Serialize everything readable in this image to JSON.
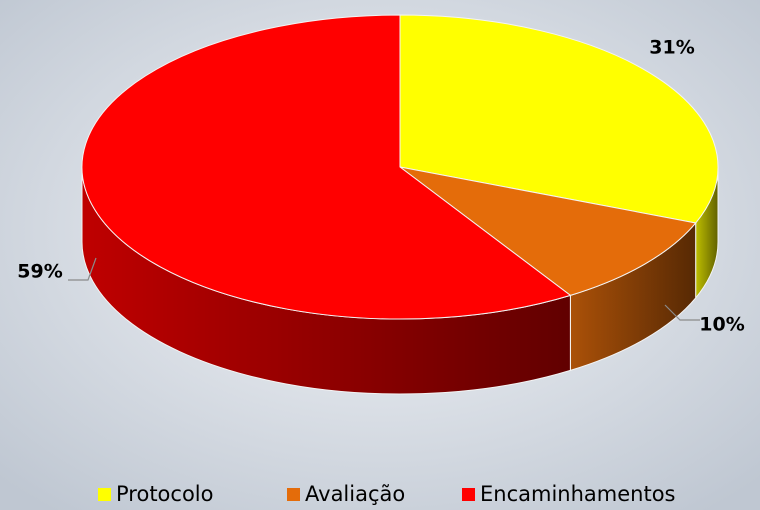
{
  "chart_data": {
    "type": "pie",
    "categories": [
      "Protocolo",
      "Avaliação",
      "Encaminhamentos"
    ],
    "values": [
      31,
      10,
      59
    ],
    "value_labels": [
      "31%",
      "10%",
      "59%"
    ],
    "colors": [
      "#ffff00",
      "#e46c0a",
      "#ff0000"
    ],
    "legend": "bottom"
  }
}
